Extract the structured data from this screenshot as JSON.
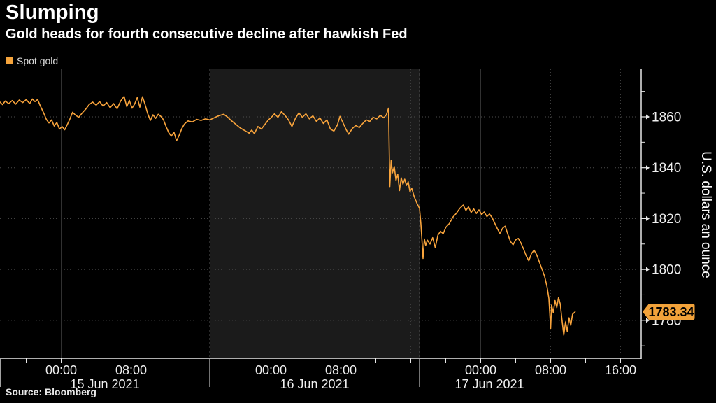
{
  "header": {
    "title": "Slumping",
    "subtitle": "Gold heads for fourth consecutive decline after hawkish Fed"
  },
  "legend": {
    "label": "Spot gold",
    "color": "#f5a43c"
  },
  "source": "Source: Bloomberg",
  "colors": {
    "background": "#000000",
    "band": "#1b1b1b",
    "line": "#f9a43c",
    "tag": "#f2a23a",
    "axis": "#e8e8e8",
    "grid_h_dotted": "#4c4c4c",
    "grid_v_solid": "#313131",
    "grid_v_dotted": "#3d3d3d",
    "separator_dashed": "#555555",
    "text": "#f0f0f0"
  },
  "chart_data": {
    "type": "line",
    "title": "Slumping",
    "subtitle": "Gold heads for fourth consecutive decline after hawkish Fed",
    "series_name": "Spot gold",
    "ylabel": "U.S. dollars an ounce",
    "xlabel": "",
    "x_unit": "hours since 14 Jun 2021 17:00",
    "xlim_hours": [
      0,
      73.36
    ],
    "ylim": [
      1765.1,
      1878.7
    ],
    "y_ticks_major": [
      1860,
      1840,
      1820,
      1800,
      1780
    ],
    "y_ticks_minor": [
      1870,
      1850,
      1830,
      1810,
      1790,
      1770
    ],
    "x_minor_tick_hours": [
      3,
      7,
      11,
      15,
      19,
      23,
      27,
      31,
      35,
      39,
      43,
      47,
      51,
      55,
      59,
      63,
      67,
      71
    ],
    "x_grid_solid_hours": [
      7,
      31,
      55
    ],
    "x_grid_dotted_hours": [
      15,
      23,
      39,
      47,
      63,
      71
    ],
    "day_separator_hours": [
      0,
      24,
      48
    ],
    "highlight_band_hours": [
      24,
      48
    ],
    "time_labels": [
      {
        "hour": 7,
        "label": "00:00"
      },
      {
        "hour": 15,
        "label": "08:00"
      },
      {
        "hour": 31,
        "label": "00:00"
      },
      {
        "hour": 39,
        "label": "08:00"
      },
      {
        "hour": 55,
        "label": "00:00"
      },
      {
        "hour": 63,
        "label": "08:00"
      },
      {
        "hour": 71,
        "label": "16:00"
      }
    ],
    "date_labels": [
      {
        "hour": 12,
        "label": "15 Jun 2021"
      },
      {
        "hour": 36,
        "label": "16 Jun 2021"
      },
      {
        "hour": 56,
        "label": "17 Jun 2021"
      }
    ],
    "last_price_label": "1783.34",
    "last_price": 1783.34,
    "legend_position": "top-left",
    "grid": true,
    "points": [
      [
        0,
        1865.8
      ],
      [
        0.3,
        1864.8
      ],
      [
        0.6,
        1866.2
      ],
      [
        1,
        1865.2
      ],
      [
        1.4,
        1866.4
      ],
      [
        1.8,
        1865
      ],
      [
        2.2,
        1866.6
      ],
      [
        2.6,
        1865.6
      ],
      [
        3,
        1866.8
      ],
      [
        3.4,
        1865.2
      ],
      [
        3.7,
        1867
      ],
      [
        4,
        1866
      ],
      [
        4.3,
        1866.8
      ],
      [
        4.6,
        1864.4
      ],
      [
        5,
        1861.5
      ],
      [
        5.3,
        1859
      ],
      [
        5.6,
        1857.6
      ],
      [
        5.9,
        1858.8
      ],
      [
        6.2,
        1856.4
      ],
      [
        6.5,
        1857.8
      ],
      [
        6.8,
        1855.2
      ],
      [
        7.1,
        1856.2
      ],
      [
        7.4,
        1854.9
      ],
      [
        7.7,
        1857
      ],
      [
        8,
        1859.2
      ],
      [
        8.3,
        1861.8
      ],
      [
        8.6,
        1860.8
      ],
      [
        9,
        1859.8
      ],
      [
        9.4,
        1861.5
      ],
      [
        9.8,
        1863
      ],
      [
        10.2,
        1864.8
      ],
      [
        10.6,
        1865.8
      ],
      [
        11,
        1864.6
      ],
      [
        11.4,
        1866
      ],
      [
        11.8,
        1864.2
      ],
      [
        12.2,
        1865.6
      ],
      [
        12.6,
        1863.6
      ],
      [
        13,
        1865.2
      ],
      [
        13.4,
        1863.2
      ],
      [
        13.8,
        1866.2
      ],
      [
        14.2,
        1868
      ],
      [
        14.5,
        1864
      ],
      [
        14.8,
        1866.5
      ],
      [
        15.1,
        1863.4
      ],
      [
        15.4,
        1865
      ],
      [
        15.7,
        1867.6
      ],
      [
        16,
        1863.8
      ],
      [
        16.3,
        1867.9
      ],
      [
        16.6,
        1864.8
      ],
      [
        16.9,
        1861.2
      ],
      [
        17.2,
        1858.6
      ],
      [
        17.5,
        1860.8
      ],
      [
        17.8,
        1859.4
      ],
      [
        18.1,
        1861
      ],
      [
        18.4,
        1860.2
      ],
      [
        18.7,
        1858.9
      ],
      [
        19,
        1856.2
      ],
      [
        19.3,
        1853.8
      ],
      [
        19.6,
        1852.4
      ],
      [
        19.9,
        1854
      ],
      [
        20.2,
        1850.6
      ],
      [
        20.5,
        1852.8
      ],
      [
        20.8,
        1855.4
      ],
      [
        21.1,
        1857.2
      ],
      [
        21.5,
        1858.4
      ],
      [
        22,
        1858
      ],
      [
        22.5,
        1859
      ],
      [
        23,
        1858.6
      ],
      [
        23.5,
        1859.2
      ],
      [
        24,
        1858.8
      ],
      [
        24.5,
        1859.6
      ],
      [
        25,
        1860.4
      ],
      [
        25.6,
        1861
      ],
      [
        26,
        1860
      ],
      [
        26.5,
        1858.4
      ],
      [
        27,
        1857
      ],
      [
        27.5,
        1855.6
      ],
      [
        28,
        1854.6
      ],
      [
        28.5,
        1853.6
      ],
      [
        28.8,
        1854.8
      ],
      [
        29.1,
        1853.4
      ],
      [
        29.5,
        1856.2
      ],
      [
        29.9,
        1855.2
      ],
      [
        30.3,
        1857
      ],
      [
        30.7,
        1858.8
      ],
      [
        31,
        1859.6
      ],
      [
        31.4,
        1861.2
      ],
      [
        31.8,
        1859.8
      ],
      [
        32.2,
        1862
      ],
      [
        32.6,
        1860.6
      ],
      [
        33,
        1858.8
      ],
      [
        33.4,
        1856.2
      ],
      [
        33.8,
        1859.4
      ],
      [
        34.2,
        1861.6
      ],
      [
        34.6,
        1859.8
      ],
      [
        35,
        1861.2
      ],
      [
        35.4,
        1859.2
      ],
      [
        35.8,
        1860.4
      ],
      [
        36.2,
        1858.2
      ],
      [
        36.6,
        1859.6
      ],
      [
        37,
        1857.4
      ],
      [
        37.4,
        1858.8
      ],
      [
        37.8,
        1855.2
      ],
      [
        38.2,
        1854.4
      ],
      [
        38.6,
        1856.8
      ],
      [
        38.9,
        1860.2
      ],
      [
        39.2,
        1858
      ],
      [
        39.6,
        1855
      ],
      [
        39.9,
        1853.2
      ],
      [
        40.3,
        1855.4
      ],
      [
        40.7,
        1856.6
      ],
      [
        41.1,
        1855.8
      ],
      [
        41.5,
        1857.4
      ],
      [
        41.9,
        1858.8
      ],
      [
        42.3,
        1858.2
      ],
      [
        42.7,
        1859.8
      ],
      [
        43.1,
        1859.2
      ],
      [
        43.5,
        1860.6
      ],
      [
        43.9,
        1859.6
      ],
      [
        44.2,
        1860.8
      ],
      [
        44.45,
        1863.4
      ],
      [
        44.6,
        1832.6
      ],
      [
        44.75,
        1843
      ],
      [
        44.9,
        1838
      ],
      [
        45.1,
        1840.5
      ],
      [
        45.3,
        1835
      ],
      [
        45.5,
        1837.5
      ],
      [
        45.7,
        1831
      ],
      [
        45.9,
        1836
      ],
      [
        46.1,
        1833.5
      ],
      [
        46.3,
        1835.5
      ],
      [
        46.5,
        1833
      ],
      [
        46.7,
        1834.5
      ],
      [
        46.9,
        1830.5
      ],
      [
        47.1,
        1832
      ],
      [
        47.4,
        1828.5
      ],
      [
        47.7,
        1826
      ],
      [
        48,
        1824
      ],
      [
        48.15,
        1818
      ],
      [
        48.3,
        1810
      ],
      [
        48.4,
        1804.3
      ],
      [
        48.55,
        1812
      ],
      [
        48.7,
        1809.5
      ],
      [
        48.9,
        1811.5
      ],
      [
        49.2,
        1810
      ],
      [
        49.5,
        1812.5
      ],
      [
        49.8,
        1808.6
      ],
      [
        50.1,
        1813.5
      ],
      [
        50.4,
        1815
      ],
      [
        50.7,
        1814
      ],
      [
        51,
        1816.5
      ],
      [
        51.4,
        1818
      ],
      [
        51.8,
        1820.5
      ],
      [
        52.2,
        1822
      ],
      [
        52.6,
        1824
      ],
      [
        53,
        1825.3
      ],
      [
        53.3,
        1823.2
      ],
      [
        53.6,
        1824.6
      ],
      [
        53.9,
        1822.4
      ],
      [
        54.2,
        1823.8
      ],
      [
        54.5,
        1822
      ],
      [
        54.8,
        1823.4
      ],
      [
        55.1,
        1821.6
      ],
      [
        55.4,
        1822.6
      ],
      [
        55.7,
        1820.8
      ],
      [
        56,
        1821.8
      ],
      [
        56.3,
        1820.4
      ],
      [
        56.6,
        1818.2
      ],
      [
        56.9,
        1816
      ],
      [
        57.2,
        1814.2
      ],
      [
        57.5,
        1816.2
      ],
      [
        57.8,
        1817
      ],
      [
        58.1,
        1813.8
      ],
      [
        58.4,
        1811
      ],
      [
        58.7,
        1809.7
      ],
      [
        59,
        1811.6
      ],
      [
        59.3,
        1812.2
      ],
      [
        59.6,
        1810.4
      ],
      [
        59.9,
        1808
      ],
      [
        60.2,
        1805.4
      ],
      [
        60.5,
        1803.4
      ],
      [
        60.8,
        1806.2
      ],
      [
        61.1,
        1807.6
      ],
      [
        61.4,
        1805.8
      ],
      [
        61.7,
        1803
      ],
      [
        62,
        1800.2
      ],
      [
        62.3,
        1797.4
      ],
      [
        62.6,
        1793
      ],
      [
        62.8,
        1788.6
      ],
      [
        63,
        1776.8
      ],
      [
        63.1,
        1786
      ],
      [
        63.3,
        1783
      ],
      [
        63.5,
        1787.8
      ],
      [
        63.7,
        1785
      ],
      [
        63.9,
        1789
      ],
      [
        64.1,
        1786.4
      ],
      [
        64.3,
        1780
      ],
      [
        64.5,
        1774.2
      ],
      [
        64.7,
        1779.4
      ],
      [
        64.9,
        1775.6
      ],
      [
        65.1,
        1781
      ],
      [
        65.3,
        1778
      ],
      [
        65.5,
        1782.4
      ],
      [
        65.8,
        1783.34
      ]
    ]
  }
}
